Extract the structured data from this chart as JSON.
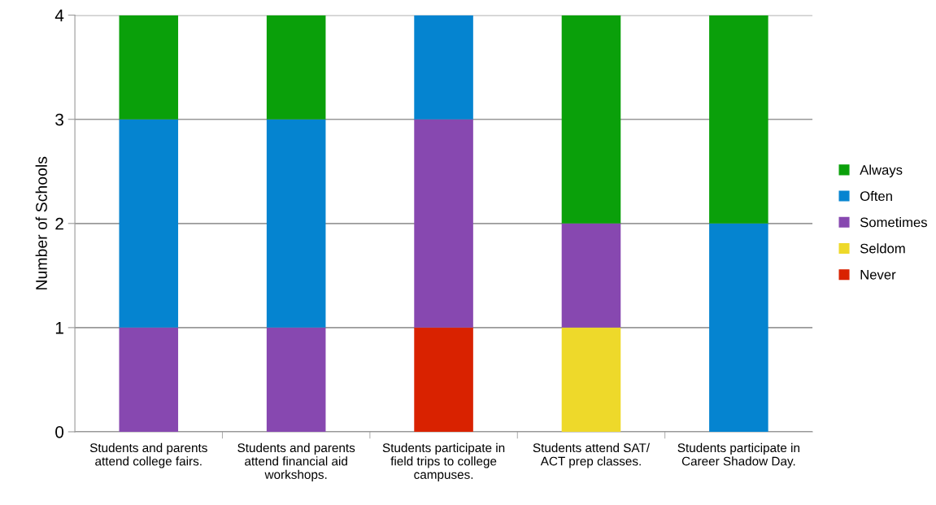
{
  "chart_data": {
    "type": "bar",
    "stacked": true,
    "ylabel": "Number of Schools",
    "categories": [
      "Students and parents\nattend college fairs.",
      "Students and parents\nattend financial aid\nworkshops.",
      "Students participate in\nfield trips to college\ncampuses.",
      "Students attend SAT/\nACT prep classes.",
      "Students participate in\nCareer Shadow Day."
    ],
    "series": [
      {
        "name": "Never",
        "color": "#d92200",
        "values": [
          null,
          null,
          1,
          null,
          null
        ]
      },
      {
        "name": "Seldom",
        "color": "#eed92a",
        "values": [
          null,
          null,
          null,
          1,
          null
        ]
      },
      {
        "name": "Sometimes",
        "color": "#8748b0",
        "values": [
          1,
          1,
          2,
          1,
          null
        ]
      },
      {
        "name": "Often",
        "color": "#0584d0",
        "values": [
          2,
          2,
          1,
          null,
          2
        ]
      },
      {
        "name": "Always",
        "color": "#0aa00a",
        "values": [
          1,
          1,
          null,
          2,
          2
        ]
      }
    ],
    "ylim": [
      0,
      4
    ],
    "yticks": [
      0,
      1,
      2,
      3,
      4
    ],
    "grid": "y",
    "legend": "right"
  }
}
